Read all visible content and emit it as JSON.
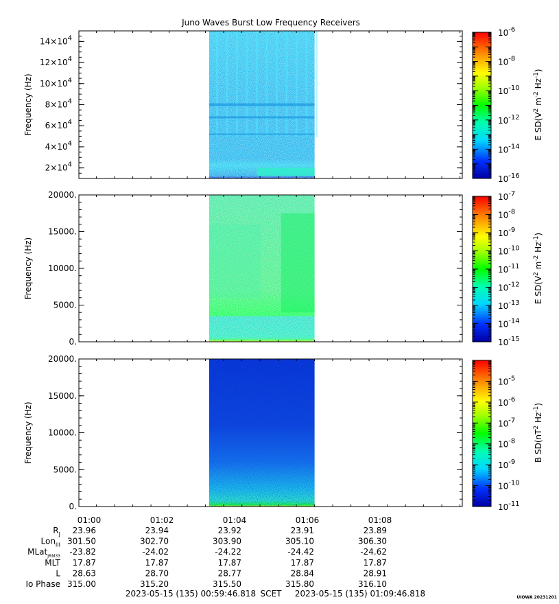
{
  "chart_data": {
    "type": "heatmap",
    "title": "Juno Waves Burst Low Frequency Receivers",
    "x_tick_labels": [
      "01:00",
      "01:02",
      "01:04",
      "01:06",
      "01:08"
    ],
    "data_interval": {
      "start": "01:03.3",
      "end": "01:06.2"
    },
    "panels": [
      {
        "ylabel": "Frequency (Hz)",
        "yticks": [
          {
            "value": 20000,
            "base": "2×10",
            "exp": "4"
          },
          {
            "value": 40000,
            "base": "4×10",
            "exp": "4"
          },
          {
            "value": 60000,
            "base": "6×10",
            "exp": "4"
          },
          {
            "value": 80000,
            "base": "8×10",
            "exp": "4"
          },
          {
            "value": 100000,
            "base": "10×10",
            "exp": "4"
          },
          {
            "value": 120000,
            "base": "12×10",
            "exp": "4"
          },
          {
            "value": 140000,
            "base": "14×10",
            "exp": "4"
          }
        ],
        "ylim": [
          10000,
          150000
        ],
        "colorbar": {
          "label": "E SD(V",
          "label_parts": [
            "E SD(V",
            "2",
            " m",
            "-2",
            " Hz",
            "-1",
            ")"
          ],
          "log_range": [
            -16,
            -6
          ],
          "ticks": [
            {
              "base": "10",
              "exp": "-6"
            },
            {
              "base": "10",
              "exp": "-8"
            },
            {
              "base": "10",
              "exp": "-10"
            },
            {
              "base": "10",
              "exp": "-12"
            },
            {
              "base": "10",
              "exp": "-14"
            },
            {
              "base": "10",
              "exp": "-16"
            }
          ]
        }
      },
      {
        "ylabel": "Frequency (Hz)",
        "yticks": [
          {
            "value": 0,
            "label": "0."
          },
          {
            "value": 5000,
            "label": "5000."
          },
          {
            "value": 10000,
            "label": "10000."
          },
          {
            "value": 15000,
            "label": "15000."
          },
          {
            "value": 20000,
            "label": "20000."
          }
        ],
        "ylim": [
          0,
          20000
        ],
        "colorbar": {
          "label_parts": [
            "E SD(V",
            "2",
            " m",
            "-2",
            " Hz",
            "-1",
            ")"
          ],
          "log_range": [
            -15,
            -7
          ],
          "ticks": [
            {
              "base": "10",
              "exp": "-7"
            },
            {
              "base": "10",
              "exp": "-8"
            },
            {
              "base": "10",
              "exp": "-9"
            },
            {
              "base": "10",
              "exp": "-10"
            },
            {
              "base": "10",
              "exp": "-11"
            },
            {
              "base": "10",
              "exp": "-12"
            },
            {
              "base": "10",
              "exp": "-13"
            },
            {
              "base": "10",
              "exp": "-14"
            },
            {
              "base": "10",
              "exp": "-15"
            }
          ]
        }
      },
      {
        "ylabel": "Frequency (Hz)",
        "yticks": [
          {
            "value": 0,
            "label": "0."
          },
          {
            "value": 5000,
            "label": "5000."
          },
          {
            "value": 10000,
            "label": "10000."
          },
          {
            "value": 15000,
            "label": "15000."
          },
          {
            "value": 20000,
            "label": "20000."
          }
        ],
        "ylim": [
          0,
          20000
        ],
        "colorbar": {
          "label_parts": [
            "B SD(nT",
            "2",
            " Hz",
            "-1",
            ")"
          ],
          "log_range": [
            -11,
            -4
          ],
          "ticks": [
            {
              "base": "10",
              "exp": "-5"
            },
            {
              "base": "10",
              "exp": "-6"
            },
            {
              "base": "10",
              "exp": "-7"
            },
            {
              "base": "10",
              "exp": "-8"
            },
            {
              "base": "10",
              "exp": "-9"
            },
            {
              "base": "10",
              "exp": "-10"
            },
            {
              "base": "10",
              "exp": "-11"
            }
          ]
        }
      }
    ],
    "ephemeris": {
      "rows": [
        {
          "label": "R",
          "sub": "J",
          "values": [
            "23.96",
            "23.94",
            "23.92",
            "23.91",
            "23.89"
          ]
        },
        {
          "label": "Lon",
          "sub": "III",
          "values": [
            "301.50",
            "302.70",
            "303.90",
            "305.10",
            "306.30"
          ]
        },
        {
          "label": "MLat",
          "sub": "JRM33",
          "values": [
            "-23.82",
            "-24.02",
            "-24.22",
            "-24.42",
            "-24.62"
          ]
        },
        {
          "label": "MLT",
          "sub": "",
          "values": [
            "17.87",
            "17.87",
            "17.87",
            "17.87",
            "17.87"
          ]
        },
        {
          "label": "L",
          "sub": "",
          "values": [
            "28.63",
            "28.70",
            "28.77",
            "28.84",
            "28.91"
          ]
        },
        {
          "label": "Io Phase",
          "sub": "",
          "values": [
            "315.00",
            "315.20",
            "315.50",
            "315.80",
            "316.10"
          ]
        }
      ]
    },
    "time_range": {
      "start": "2023-05-15 (135) 00:59:46.818",
      "mid": "SCET",
      "end": "2023-05-15 (135) 01:09:46.818"
    },
    "credit": "UIOWA 20231201"
  }
}
